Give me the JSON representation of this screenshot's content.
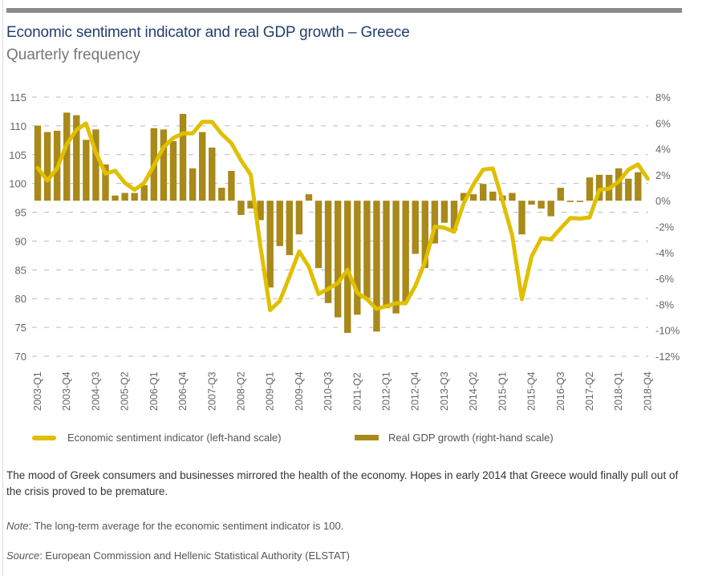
{
  "header": {
    "title": "Economic sentiment indicator and real GDP growth – Greece",
    "subtitle": "Quarterly frequency"
  },
  "chart_data": {
    "type": "bar+line",
    "title": "Economic sentiment indicator and real GDP growth – Greece",
    "subtitle": "Quarterly frequency",
    "colors": {
      "line": "#e0bf00",
      "bars": "#a8891a",
      "grid": "#bbbbbb"
    },
    "grid": true,
    "legend_position": "bottom",
    "left_axis": {
      "ylim": [
        70,
        115
      ],
      "ticks": [
        "115",
        "110",
        "105",
        "100",
        "95",
        "90",
        "85",
        "80",
        "75",
        "70"
      ]
    },
    "right_axis": {
      "ylim": [
        -12,
        8
      ],
      "ticks": [
        "8%",
        "6%",
        "4%",
        "2%",
        "0%",
        "-2%",
        "-4%",
        "-6%",
        "-8%",
        "-10%",
        "-12%"
      ]
    },
    "x_tick_labels": [
      "2003-Q1",
      "2003-Q4",
      "2004-Q3",
      "2005-Q2",
      "2006-Q1",
      "2006-Q4",
      "2007-Q3",
      "2008-Q2",
      "2009-Q1",
      "2009-Q4",
      "2010-Q3",
      "2011-Q2",
      "2012-Q1",
      "2012-Q4",
      "2013-Q3",
      "2014-Q2",
      "2015-Q1",
      "2015-Q4",
      "2016-Q3",
      "2017-Q2",
      "2018-Q1",
      "2018-Q4"
    ],
    "series": [
      {
        "name": "Economic sentiment indicator (left-hand scale)",
        "type": "line",
        "axis": "left",
        "start": "2003-Q1",
        "values": [
          102.7,
          100.5,
          102.6,
          106.8,
          109.3,
          110.4,
          105.4,
          101.7,
          102.2,
          100.1,
          98.9,
          100.1,
          103.1,
          106.3,
          107.9,
          108.7,
          108.7,
          110.7,
          110.7,
          108.6,
          107.0,
          104.0,
          101.5,
          89.1,
          78.0,
          79.6,
          83.8,
          88.2,
          85.5,
          80.8,
          81.7,
          82.7,
          85.0,
          81.0,
          79.9,
          78.2,
          78.7,
          79.2,
          79.2,
          82.2,
          86.4,
          92.5,
          92.3,
          91.6,
          96.6,
          99.8,
          102.4,
          102.6,
          97.0,
          91.0,
          79.9,
          87.3,
          90.5,
          90.3,
          92.2,
          94.0,
          93.9,
          94.1,
          98.9,
          99.1,
          100.3,
          102.4,
          103.3,
          100.8
        ]
      },
      {
        "name": "Real GDP growth (right-hand scale)",
        "type": "bar",
        "axis": "right",
        "start": "2003-Q1",
        "values": [
          5.8,
          5.3,
          5.4,
          6.8,
          6.6,
          4.7,
          5.5,
          2.8,
          0.4,
          0.6,
          0.6,
          1.2,
          5.6,
          5.5,
          4.6,
          6.7,
          2.5,
          5.3,
          4.1,
          1.0,
          2.3,
          -1.1,
          -0.6,
          -1.5,
          -6.7,
          -3.5,
          -4.2,
          -2.6,
          0.5,
          -5.2,
          -7.9,
          -9.0,
          -10.2,
          -8.8,
          -7.5,
          -10.1,
          -8.3,
          -8.7,
          -7.8,
          -4.1,
          -5.2,
          -3.3,
          -1.7,
          -2.3,
          0.6,
          0.5,
          1.3,
          0.7,
          0.4,
          0.6,
          -2.6,
          -0.3,
          -0.6,
          -1.2,
          1.0,
          -0.1,
          -0.1,
          1.8,
          2.0,
          2.0,
          2.5,
          1.7,
          2.2
        ]
      }
    ]
  },
  "legend": {
    "line_label": "Economic sentiment indicator (left-hand scale)",
    "bar_label": "Real GDP growth (right-hand scale)"
  },
  "footer": {
    "description": "The mood of Greek consumers and businesses mirrored the health of the economy. Hopes in early 2014 that Greece would finally pull out of the crisis proved to be premature.",
    "note_label": "Note",
    "note_text": ": The long-term average for the economic sentiment indicator is 100.",
    "source_label": "Source",
    "source_text": ": European Commission and Hellenic Statistical Authority (ELSTAT)"
  }
}
